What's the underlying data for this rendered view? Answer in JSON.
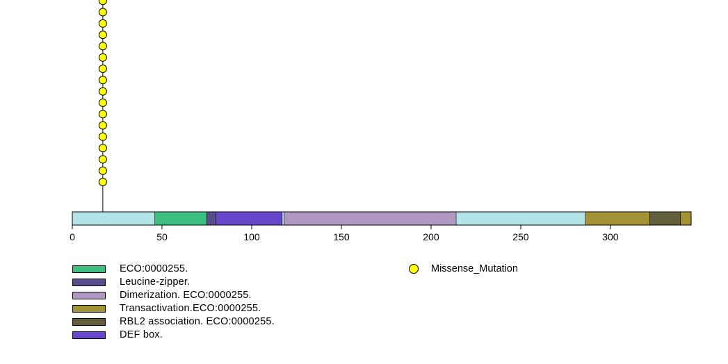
{
  "chart_data": {
    "type": "lollipop",
    "protein_length": 345,
    "x_ticks": [
      0,
      50,
      100,
      150,
      200,
      250,
      300
    ],
    "backbone_color": "#b3e5e8",
    "domains": [
      {
        "label": "ECO:0000255.",
        "start": 46,
        "end": 75,
        "color": "#3dbf82"
      },
      {
        "label": "Leucine-zipper.",
        "start": 75,
        "end": 80,
        "color": "#5c4e8c"
      },
      {
        "label": "DEF box.",
        "start": 80,
        "end": 117,
        "color": "#6747cc"
      },
      {
        "label": "Dimerization. ECO:0000255.",
        "start": 118,
        "end": 214,
        "color": "#b098c2"
      },
      {
        "label": "Transactivation.ECO:0000255.",
        "start": 286,
        "end": 322,
        "color": "#a39335"
      },
      {
        "label": "RBL2 association. ECO:0000255.",
        "start": 322,
        "end": 339,
        "color": "#635e3c"
      },
      {
        "label": "Transactivation.ECO:0000255.",
        "start": 339,
        "end": 345,
        "color": "#a39335"
      }
    ],
    "mutations": [
      {
        "position": 17,
        "count": 17,
        "type": "Missense_Mutation",
        "color": "#ffff00"
      }
    ]
  },
  "legend": {
    "domains": [
      {
        "label": "ECO:0000255.",
        "color": "#3dbf82"
      },
      {
        "label": "Leucine-zipper.",
        "color": "#5c4e8c"
      },
      {
        "label": "Dimerization. ECO:0000255.",
        "color": "#b098c2"
      },
      {
        "label": "Transactivation.ECO:0000255.",
        "color": "#a39335"
      },
      {
        "label": "RBL2 association. ECO:0000255.",
        "color": "#635e3c"
      },
      {
        "label": "DEF box.",
        "color": "#6747cc"
      }
    ],
    "mutation_type": "Missense_Mutation"
  }
}
